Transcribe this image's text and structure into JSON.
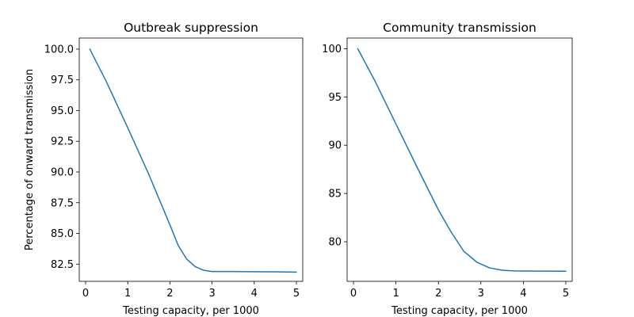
{
  "chart_data": [
    {
      "type": "line",
      "title": "Outbreak suppression",
      "xlabel": "Testing capacity, per 1000",
      "ylabel": "Percentage of onward transmission",
      "xlim": [
        -0.15,
        5.15
      ],
      "ylim": [
        81.1,
        100.9
      ],
      "xticks": [
        0,
        1,
        2,
        3,
        4,
        5
      ],
      "yticks": [
        82.5,
        85.0,
        87.5,
        90.0,
        92.5,
        95.0,
        97.5,
        100.0
      ],
      "ytick_labels": [
        "82.5",
        "85.0",
        "87.5",
        "90.0",
        "92.5",
        "95.0",
        "97.5",
        "100.0"
      ],
      "grid": false,
      "color": "#1f77b4",
      "series": [
        {
          "x": [
            0.1,
            0.5,
            1.0,
            1.5,
            2.0,
            2.2,
            2.4,
            2.6,
            2.8,
            3.0,
            3.5,
            4.0,
            4.5,
            5.0
          ],
          "y": [
            100.0,
            97.3,
            93.6,
            89.8,
            85.7,
            84.0,
            82.9,
            82.3,
            82.0,
            81.9,
            81.9,
            81.88,
            81.87,
            81.85
          ]
        }
      ]
    },
    {
      "type": "line",
      "title": "Community transmission",
      "xlabel": "Testing capacity, per 1000",
      "ylabel": "",
      "xlim": [
        -0.15,
        5.15
      ],
      "ylim": [
        75.9,
        101.1
      ],
      "xticks": [
        0,
        1,
        2,
        3,
        4,
        5
      ],
      "yticks": [
        80,
        85,
        90,
        95,
        100
      ],
      "ytick_labels": [
        "80",
        "85",
        "90",
        "95",
        "100"
      ],
      "grid": false,
      "color": "#1f77b4",
      "series": [
        {
          "x": [
            0.1,
            0.5,
            1.0,
            1.5,
            2.0,
            2.3,
            2.6,
            2.9,
            3.2,
            3.5,
            3.8,
            4.0,
            4.5,
            5.0
          ],
          "y": [
            100.0,
            96.7,
            92.2,
            87.7,
            83.3,
            81.0,
            79.0,
            77.9,
            77.3,
            77.05,
            76.98,
            76.97,
            76.96,
            76.95
          ]
        }
      ]
    }
  ]
}
